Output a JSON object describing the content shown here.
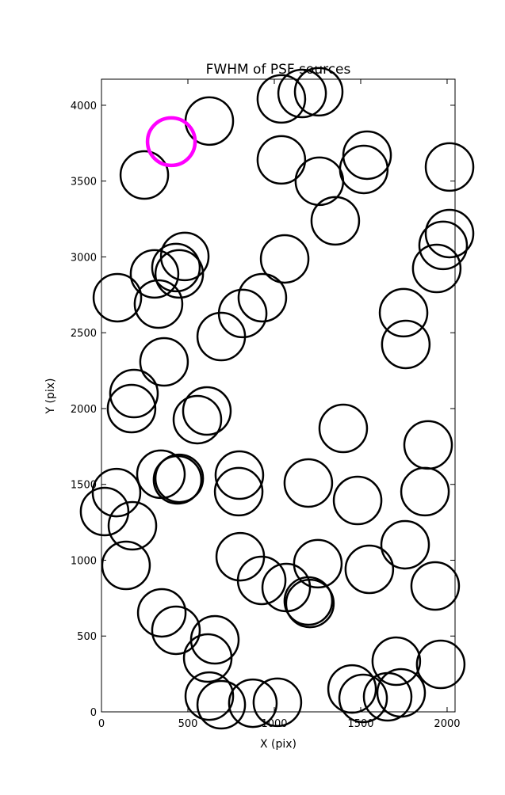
{
  "chart_data": {
    "type": "scatter",
    "title": "FWHM of PSF sources",
    "x_label": "X (pix)",
    "y_label": "Y (pix)",
    "xlim": [
      0,
      2046
    ],
    "ylim": [
      0,
      4172
    ],
    "xticks": [
      0,
      500,
      1000,
      1500,
      2000
    ],
    "yticks": [
      0,
      500,
      1000,
      1500,
      2000,
      2500,
      3000,
      3500,
      4000
    ],
    "series": [
      {
        "color": "#000000",
        "x": [
          624,
          1041,
          1161,
          1257,
          248,
          1041,
          1537,
          1518,
          1261,
          2014,
          1353,
          2014,
          1977,
          1940,
          482,
          431,
          307,
          450,
          1060,
          92,
          330,
          931,
          817,
          693,
          1748,
          1761,
          362,
          188,
          174,
          610,
          555,
          1399,
          1890,
          344,
          450,
          440,
          87,
          18,
          179,
          798,
          794,
          1197,
          1482,
          1872,
          1757,
          142,
          803,
          1252,
          1550,
          927,
          1069,
          1197,
          1206,
          1931,
          349,
          431,
          656,
          615,
          1706,
          1963,
          624,
          693,
          876,
          1018,
          1450,
          1514,
          1656,
          1734
        ],
        "y": [
          3896,
          4042,
          4078,
          4089,
          3540,
          3640,
          3671,
          3577,
          3499,
          3593,
          3238,
          3154,
          3076,
          2924,
          3003,
          2930,
          2888,
          2888,
          2987,
          2731,
          2689,
          2731,
          2627,
          2475,
          2632,
          2423,
          2308,
          2099,
          2000,
          1984,
          1927,
          1869,
          1760,
          1567,
          1540,
          1530,
          1446,
          1321,
          1227,
          1561,
          1452,
          1509,
          1394,
          1452,
          1102,
          966,
          1023,
          977,
          940,
          867,
          820,
          731,
          715,
          830,
          653,
          538,
          475,
          355,
          334,
          313,
          104,
          47,
          57,
          63,
          151,
          89,
          99,
          125
        ]
      },
      {
        "color": "#ff00ff",
        "x": [
          404
        ],
        "y": [
          3760
        ]
      }
    ]
  }
}
